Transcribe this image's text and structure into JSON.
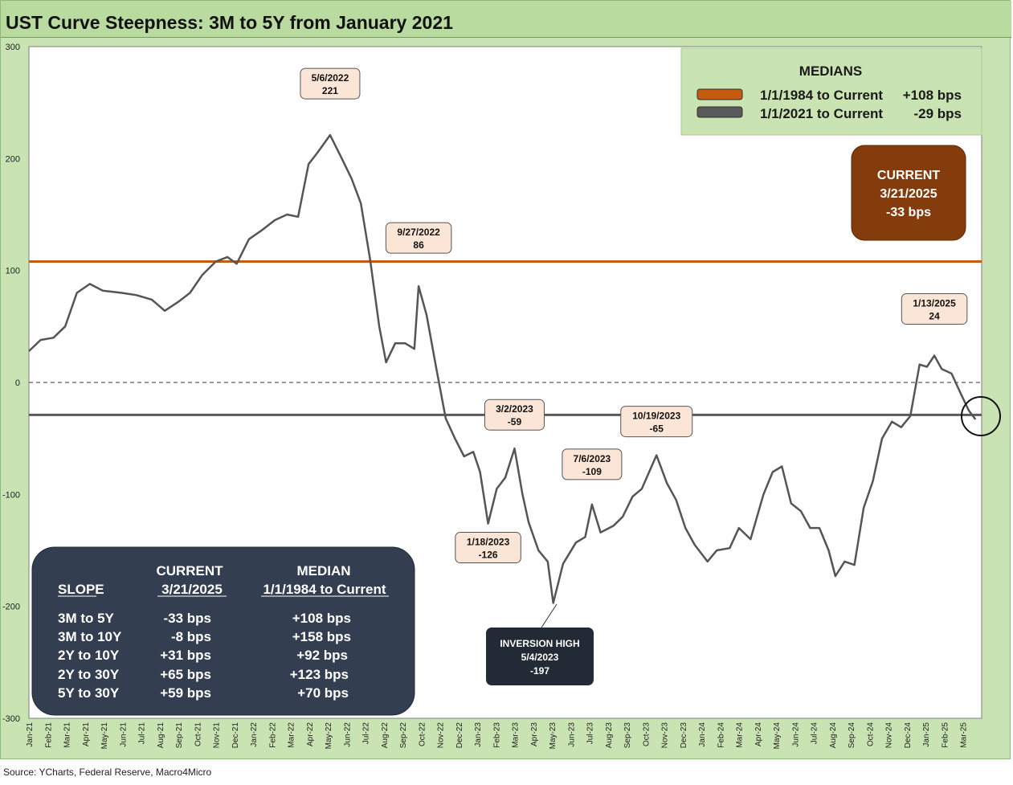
{
  "title": "UST Curve Steepness: 3M to 5Y from January 2021",
  "source": "Source: YCharts, Federal Reserve, Macro4Micro",
  "colors": {
    "series": "#555555",
    "median_long": "#c55a11",
    "median_short": "#595959",
    "current_box": "#843c0c",
    "slope_box": "#333f50",
    "inversion_box": "#222a35",
    "annotation_fill": "#fbe5d6",
    "background": "#c9e3b3"
  },
  "chart_data": {
    "type": "line",
    "ylim": [
      -300,
      300
    ],
    "yticks": [
      -300,
      -200,
      -100,
      0,
      100,
      200,
      300
    ],
    "xlim": [
      "2021-01-01",
      "2025-03-31"
    ],
    "x_tick_labels": [
      "Jan-21",
      "Feb-21",
      "Mar-21",
      "Apr-21",
      "May-21",
      "Jun-21",
      "Jul-21",
      "Aug-21",
      "Sep-21",
      "Oct-21",
      "Nov-21",
      "Dec-21",
      "Jan-22",
      "Feb-22",
      "Mar-22",
      "Apr-22",
      "May-22",
      "Jun-22",
      "Jul-22",
      "Aug-22",
      "Sep-22",
      "Oct-22",
      "Nov-22",
      "Dec-22",
      "Jan-23",
      "Feb-23",
      "Mar-23",
      "Apr-23",
      "May-23",
      "Jun-23",
      "Jul-23",
      "Aug-23",
      "Sep-23",
      "Oct-23",
      "Nov-23",
      "Dec-23",
      "Jan-24",
      "Feb-24",
      "Mar-24",
      "Apr-24",
      "May-24",
      "Jun-24",
      "Jul-24",
      "Aug-24",
      "Sep-24",
      "Oct-24",
      "Nov-24",
      "Dec-24",
      "Jan-25",
      "Feb-25",
      "Mar-25"
    ],
    "series": [
      {
        "x": [
          "2021-01-01",
          "2021-01-20",
          "2021-02-10",
          "2021-03-01",
          "2021-03-20",
          "2021-04-10",
          "2021-05-01",
          "2021-06-01",
          "2021-06-25",
          "2021-07-20",
          "2021-08-10",
          "2021-09-01",
          "2021-09-20",
          "2021-10-10",
          "2021-11-01",
          "2021-11-20",
          "2021-12-05",
          "2021-12-25",
          "2022-01-15",
          "2022-02-05",
          "2022-02-25",
          "2022-03-15",
          "2022-04-01",
          "2022-04-15",
          "2022-05-06",
          "2022-05-25",
          "2022-06-10",
          "2022-06-25",
          "2022-07-10",
          "2022-07-25",
          "2022-08-05",
          "2022-08-20",
          "2022-09-05",
          "2022-09-20",
          "2022-09-27",
          "2022-10-10",
          "2022-10-25",
          "2022-11-10",
          "2022-11-25",
          "2022-12-10",
          "2022-12-25",
          "2023-01-05",
          "2023-01-18",
          "2023-02-01",
          "2023-02-15",
          "2023-03-02",
          "2023-03-15",
          "2023-03-25",
          "2023-04-10",
          "2023-04-25",
          "2023-05-04",
          "2023-05-20",
          "2023-06-10",
          "2023-06-25",
          "2023-07-06",
          "2023-07-20",
          "2023-08-10",
          "2023-08-25",
          "2023-09-10",
          "2023-09-25",
          "2023-10-19",
          "2023-11-05",
          "2023-11-20",
          "2023-12-05",
          "2023-12-20",
          "2024-01-10",
          "2024-01-25",
          "2024-02-15",
          "2024-03-01",
          "2024-03-20",
          "2024-04-10",
          "2024-04-25",
          "2024-05-10",
          "2024-05-25",
          "2024-06-10",
          "2024-06-25",
          "2024-07-10",
          "2024-07-25",
          "2024-08-05",
          "2024-08-20",
          "2024-09-05",
          "2024-09-20",
          "2024-10-05",
          "2024-10-20",
          "2024-11-05",
          "2024-11-20",
          "2024-12-05",
          "2024-12-20",
          "2025-01-01",
          "2025-01-13",
          "2025-01-25",
          "2025-02-10",
          "2025-02-25",
          "2025-03-10",
          "2025-03-21"
        ],
        "y": [
          28,
          38,
          40,
          50,
          80,
          88,
          82,
          80,
          78,
          74,
          64,
          72,
          80,
          96,
          108,
          112,
          106,
          128,
          136,
          145,
          150,
          148,
          195,
          205,
          221,
          200,
          182,
          160,
          110,
          50,
          18,
          35,
          35,
          30,
          86,
          60,
          15,
          -32,
          -50,
          -66,
          -62,
          -80,
          -126,
          -95,
          -85,
          -59,
          -100,
          -125,
          -150,
          -160,
          -197,
          -162,
          -143,
          -138,
          -109,
          -134,
          -128,
          -120,
          -102,
          -95,
          -65,
          -90,
          -105,
          -130,
          -145,
          -160,
          -150,
          -148,
          -130,
          -140,
          -100,
          -80,
          -75,
          -108,
          -115,
          -130,
          -130,
          -150,
          -173,
          -160,
          -163,
          -112,
          -88,
          -50,
          -35,
          -40,
          -30,
          16,
          14,
          24,
          12,
          8,
          -10,
          -25,
          -33
        ]
      }
    ],
    "medians": [
      {
        "name": "1/1/1984 to Current",
        "value": 108,
        "label": "+108 bps"
      },
      {
        "name": "1/1/2021 to Current",
        "value": -29,
        "label": "-29 bps"
      }
    ],
    "annotations": [
      {
        "date_label": "5/6/2022",
        "value_label": "221",
        "x": "2022-05-06",
        "y": 221
      },
      {
        "date_label": "9/27/2022",
        "value_label": "86",
        "x": "2022-09-27",
        "y": 86
      },
      {
        "date_label": "1/18/2023",
        "value_label": "-126",
        "x": "2023-01-18",
        "y": -126
      },
      {
        "date_label": "3/2/2023",
        "value_label": "-59",
        "x": "2023-03-02",
        "y": -59
      },
      {
        "date_label": "7/6/2023",
        "value_label": "-109",
        "x": "2023-07-06",
        "y": -109
      },
      {
        "date_label": "10/19/2023",
        "value_label": "-65",
        "x": "2023-10-19",
        "y": -65
      },
      {
        "date_label": "1/13/2025",
        "value_label": "24",
        "x": "2025-01-13",
        "y": 24
      }
    ],
    "legend_position": "top-right"
  },
  "medians_box": {
    "heading": "MEDIANS",
    "rows": [
      {
        "period": "1/1/1984 to Current",
        "value": "+108 bps"
      },
      {
        "period": "1/1/2021 to Current",
        "value": "-29 bps"
      }
    ]
  },
  "current_box": {
    "line1": "CURRENT",
    "line2": "3/21/2025",
    "line3": "-33 bps"
  },
  "inversion_box": {
    "line1": "INVERSION HIGH",
    "line2": "5/4/2023",
    "line3": "-197"
  },
  "slope_table": {
    "col_current_1": "CURRENT",
    "col_current_2": "3/21/2025",
    "col_median_1": "MEDIAN",
    "col_median_2": "1/1/1984 to Current",
    "col_slope": "SLOPE",
    "rows": [
      {
        "slope": "3M to 5Y",
        "current": "-33 bps",
        "median": "+108 bps"
      },
      {
        "slope": "3M to 10Y",
        "current": "-8 bps",
        "median": "+158 bps"
      },
      {
        "slope": "2Y to 10Y",
        "current": "+31 bps",
        "median": "+92 bps"
      },
      {
        "slope": "2Y to 30Y",
        "current": "+65 bps",
        "median": "+123 bps"
      },
      {
        "slope": "5Y to 30Y",
        "current": "+59 bps",
        "median": "+70 bps"
      }
    ]
  }
}
